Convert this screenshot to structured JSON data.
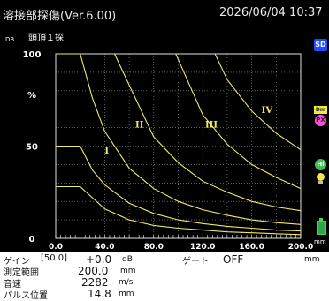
{
  "header": {
    "title": "溶接部探傷(Ver.6.00)",
    "datetime": "2026/06/04  10:37"
  },
  "screen": {
    "db_label": "DB",
    "mode_label": "頭頂１探",
    "y_ticks": [
      "100",
      "%",
      "50",
      "0"
    ],
    "x_ticks": [
      "0.0",
      "40.0",
      "80.0",
      "120.0",
      "160.0",
      "200.0"
    ],
    "zones": [
      "I",
      "II",
      "III",
      "IV"
    ],
    "colors": {
      "background": "#000000",
      "grid": "#c9c9c9",
      "curve": "#f0ea6a",
      "axis_text": "#ffffff"
    }
  },
  "chart_data": {
    "type": "line",
    "xlim": [
      0,
      200
    ],
    "ylim": [
      0,
      100
    ],
    "grid": true,
    "series": [
      {
        "x": [
          0,
          20,
          40,
          60,
          80,
          100,
          120,
          140,
          160,
          180,
          200
        ],
        "values": [
          28,
          28,
          16,
          10,
          7,
          5.5,
          4.5,
          3.5,
          3,
          2.5,
          2
        ]
      },
      {
        "x": [
          0,
          20,
          30,
          40,
          60,
          80,
          100,
          120,
          140,
          160,
          180,
          200
        ],
        "values": [
          50,
          50,
          37,
          29,
          19,
          13.5,
          10,
          8,
          6.5,
          5.5,
          4.5,
          4
        ]
      },
      {
        "x": [
          0,
          20,
          30,
          40,
          60,
          80,
          100,
          120,
          140,
          160,
          180,
          200
        ],
        "values": [
          100,
          100,
          76,
          58,
          38,
          27,
          20,
          15.5,
          12.5,
          10,
          8.5,
          7.5
        ]
      },
      {
        "x": [
          48,
          60,
          80,
          100,
          120,
          140,
          160,
          180,
          200
        ],
        "values": [
          100,
          83,
          55,
          41,
          31,
          25,
          20,
          17,
          15
        ]
      },
      {
        "x": [
          98,
          100,
          120,
          140,
          160,
          180,
          200
        ],
        "values": [
          100,
          97,
          67,
          51,
          40,
          33,
          27
        ]
      },
      {
        "x": [
          130,
          140,
          160,
          180,
          200
        ],
        "values": [
          100,
          86,
          69,
          57,
          48
        ]
      }
    ]
  },
  "sidebar": {
    "sd": "SD",
    "dm": "Dm",
    "px": "PX",
    "hi": "Hi",
    "mm": "mm"
  },
  "status": {
    "gain_label": "ゲイン",
    "gain_base": "[50.0]",
    "gain_offset": "+0.0",
    "gain_unit": "dB",
    "gate_label": "ゲート",
    "gate_value": "OFF",
    "gate_unit": "mm",
    "range_label": "測定範囲",
    "range_value": "200.0",
    "range_unit": "mm",
    "velocity_label": "音速",
    "velocity_value": "2282",
    "velocity_unit": "m/s",
    "pulse_label": "パルス位置",
    "pulse_value": "14.8",
    "pulse_unit": "mm"
  }
}
